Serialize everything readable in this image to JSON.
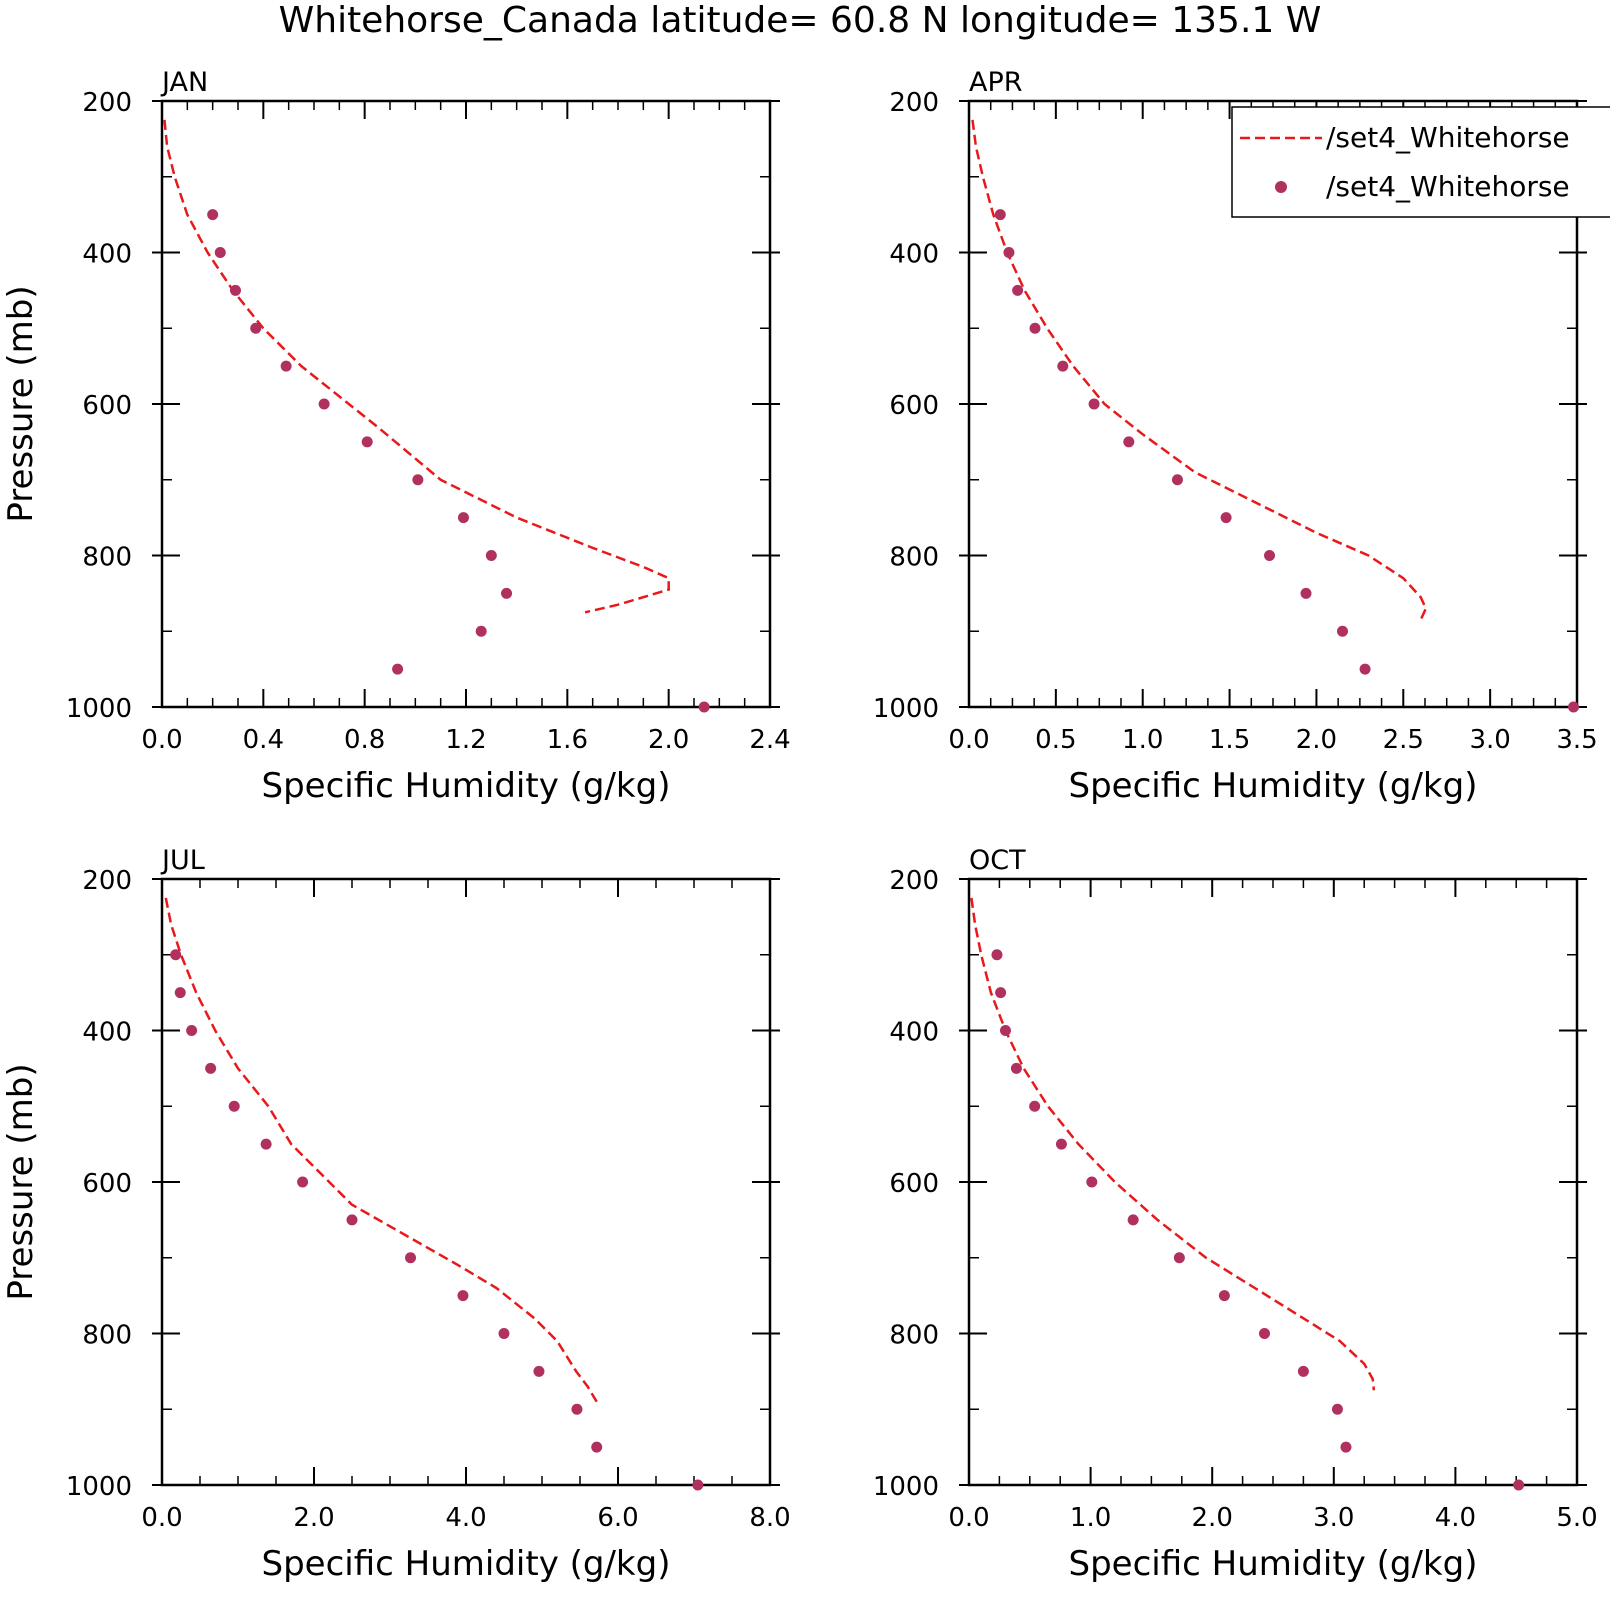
{
  "figure": {
    "title": "Whitehorse_Canada  latitude= 60.8 N longitude= 135.1 W"
  },
  "legend": {
    "entries": [
      {
        "label": "/set4_Whitehorse",
        "style": "dashed-line",
        "color": "#e8191b"
      },
      {
        "label": "/set4_Whitehorse",
        "style": "dot",
        "color": "#b03060"
      }
    ]
  },
  "colors": {
    "model_line": "#e8191b",
    "obs_points": "#b03060",
    "axes": "#000000"
  },
  "chart_data": [
    {
      "type": "line",
      "title": "JAN",
      "xlabel": "Specific Humidity (g/kg)",
      "ylabel": "Pressure (mb)",
      "xlim": [
        0,
        2.4
      ],
      "ylim": [
        200,
        1000
      ],
      "y_inverted": true,
      "xticks": [
        0,
        0.4,
        0.8,
        1.2,
        1.6,
        2.0,
        2.4
      ],
      "xtick_labels": [
        "0.0",
        "0.4",
        "0.8",
        "1.2",
        "1.6",
        "2.0",
        "2.4"
      ],
      "yticks": [
        200,
        400,
        600,
        800,
        1000
      ],
      "ytick_labels": [
        "200",
        "400",
        "600",
        "800",
        "1000"
      ],
      "series": [
        {
          "style": "dashed-line",
          "x": [
            0.01,
            0.02,
            0.05,
            0.1,
            0.18,
            0.28,
            0.4,
            0.55,
            0.7,
            0.85,
            1.1,
            1.4,
            1.7,
            1.9,
            2.0,
            2.0,
            1.8,
            1.67
          ],
          "y": [
            225,
            260,
            300,
            350,
            400,
            450,
            500,
            550,
            590,
            630,
            700,
            750,
            790,
            815,
            830,
            845,
            865,
            875
          ]
        },
        {
          "style": "dot",
          "x": [
            0.2,
            0.23,
            0.29,
            0.37,
            0.49,
            0.64,
            0.81,
            1.01,
            1.19,
            1.3,
            1.36,
            1.26,
            0.93,
            2.14
          ],
          "y": [
            350,
            400,
            450,
            500,
            550,
            600,
            650,
            700,
            750,
            800,
            850,
            900,
            950,
            1000
          ]
        }
      ]
    },
    {
      "type": "line",
      "title": "APR",
      "xlabel": "Specific Humidity (g/kg)",
      "ylabel": "",
      "xlim": [
        0,
        3.5
      ],
      "ylim": [
        200,
        1000
      ],
      "y_inverted": true,
      "xticks": [
        0,
        0.5,
        1.0,
        1.5,
        2.0,
        2.5,
        3.0,
        3.5
      ],
      "xtick_labels": [
        "0.0",
        "0.5",
        "1.0",
        "1.5",
        "2.0",
        "2.5",
        "3.0",
        "3.5"
      ],
      "yticks": [
        200,
        400,
        600,
        800,
        1000
      ],
      "ytick_labels": [
        "200",
        "400",
        "600",
        "800",
        "1000"
      ],
      "series": [
        {
          "style": "dashed-line",
          "x": [
            0.02,
            0.04,
            0.08,
            0.14,
            0.22,
            0.32,
            0.45,
            0.6,
            0.78,
            1.0,
            1.3,
            1.65,
            2.0,
            2.3,
            2.5,
            2.6,
            2.63,
            2.6
          ],
          "y": [
            225,
            260,
            300,
            350,
            400,
            450,
            500,
            550,
            600,
            640,
            690,
            730,
            770,
            800,
            830,
            855,
            870,
            885
          ]
        },
        {
          "style": "dot",
          "x": [
            0.18,
            0.23,
            0.28,
            0.38,
            0.54,
            0.72,
            0.92,
            1.2,
            1.48,
            1.73,
            1.94,
            2.15,
            2.28,
            3.48
          ],
          "y": [
            350,
            400,
            450,
            500,
            550,
            600,
            650,
            700,
            750,
            800,
            850,
            900,
            950,
            1000
          ]
        }
      ]
    },
    {
      "type": "line",
      "title": "JUL",
      "xlabel": "Specific Humidity (g/kg)",
      "ylabel": "Pressure (mb)",
      "xlim": [
        0,
        8.0
      ],
      "ylim": [
        200,
        1000
      ],
      "y_inverted": true,
      "xticks": [
        0,
        2.0,
        4.0,
        6.0,
        8.0
      ],
      "xtick_labels": [
        "0.0",
        "2.0",
        "4.0",
        "6.0",
        "8.0"
      ],
      "yticks": [
        200,
        400,
        600,
        800,
        1000
      ],
      "ytick_labels": [
        "200",
        "400",
        "600",
        "800",
        "1000"
      ],
      "series": [
        {
          "style": "dashed-line",
          "x": [
            0.05,
            0.12,
            0.25,
            0.45,
            0.7,
            1.0,
            1.4,
            1.7,
            2.1,
            2.5,
            3.2,
            3.9,
            4.4,
            4.9,
            5.2,
            5.45,
            5.6,
            5.72
          ],
          "y": [
            225,
            260,
            300,
            350,
            400,
            450,
            500,
            550,
            590,
            630,
            670,
            710,
            740,
            780,
            810,
            850,
            870,
            890
          ]
        },
        {
          "style": "dot",
          "x": [
            0.18,
            0.24,
            0.39,
            0.64,
            0.95,
            1.37,
            1.85,
            2.5,
            3.27,
            3.96,
            4.5,
            4.96,
            5.46,
            5.72,
            7.05
          ],
          "y": [
            300,
            350,
            400,
            450,
            500,
            550,
            600,
            650,
            700,
            750,
            800,
            850,
            900,
            950,
            1000
          ]
        }
      ]
    },
    {
      "type": "line",
      "title": "OCT",
      "xlabel": "Specific Humidity (g/kg)",
      "ylabel": "",
      "xlim": [
        0,
        5.0
      ],
      "ylim": [
        200,
        1000
      ],
      "y_inverted": true,
      "xticks": [
        0,
        1.0,
        2.0,
        3.0,
        4.0,
        5.0
      ],
      "xtick_labels": [
        "0.0",
        "1.0",
        "2.0",
        "3.0",
        "4.0",
        "5.0"
      ],
      "yticks": [
        200,
        400,
        600,
        800,
        1000
      ],
      "ytick_labels": [
        "200",
        "400",
        "600",
        "800",
        "1000"
      ],
      "series": [
        {
          "style": "dashed-line",
          "x": [
            0.02,
            0.05,
            0.1,
            0.18,
            0.3,
            0.45,
            0.65,
            0.9,
            1.2,
            1.55,
            1.95,
            2.35,
            2.75,
            3.05,
            3.25,
            3.32,
            3.33
          ],
          "y": [
            225,
            260,
            300,
            350,
            400,
            450,
            500,
            550,
            600,
            650,
            700,
            740,
            780,
            810,
            840,
            860,
            875
          ]
        },
        {
          "style": "dot",
          "x": [
            0.23,
            0.26,
            0.3,
            0.39,
            0.54,
            0.76,
            1.01,
            1.35,
            1.73,
            2.1,
            2.43,
            2.75,
            3.03,
            3.1,
            4.52
          ],
          "y": [
            300,
            350,
            400,
            450,
            500,
            550,
            600,
            650,
            700,
            750,
            800,
            850,
            900,
            950,
            1000
          ]
        }
      ]
    }
  ]
}
